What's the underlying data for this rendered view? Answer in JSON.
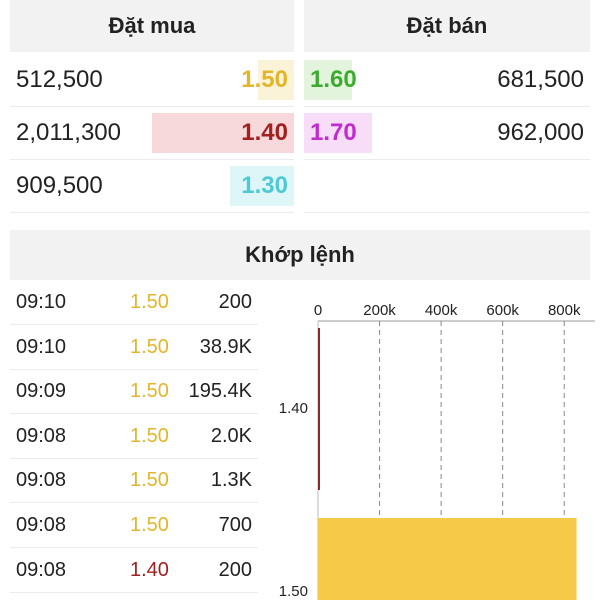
{
  "order_book": {
    "buy_header": "Đặt mua",
    "sell_header": "Đặt bán",
    "buy": [
      {
        "volume": "512,500",
        "price": "1.50",
        "price_color": "#e3b52a",
        "bar_color": "#fbf3d8",
        "volume_fraction": 0.25
      },
      {
        "volume": "2,011,300",
        "price": "1.40",
        "price_color": "#a32020",
        "bar_color": "#f7d9dc",
        "volume_fraction": 1.0
      },
      {
        "volume": "909,500",
        "price": "1.30",
        "price_color": "#4fc9d6",
        "bar_color": "#def6f8",
        "volume_fraction": 0.45
      }
    ],
    "sell": [
      {
        "volume": "681,500",
        "price": "1.60",
        "price_color": "#3cab2f",
        "bar_color": "#e2f4dc",
        "volume_fraction": 0.34
      },
      {
        "volume": "962,000",
        "price": "1.70",
        "price_color": "#c02ccd",
        "bar_color": "#f7ddf8",
        "volume_fraction": 0.48
      }
    ]
  },
  "matched": {
    "header": "Khớp lệnh",
    "trades": [
      {
        "time": "09:10",
        "price": "1.50",
        "price_color": "#e3b52a",
        "volume": "200"
      },
      {
        "time": "09:10",
        "price": "1.50",
        "price_color": "#e3b52a",
        "volume": "38.9K"
      },
      {
        "time": "09:09",
        "price": "1.50",
        "price_color": "#e3b52a",
        "volume": "195.4K"
      },
      {
        "time": "09:08",
        "price": "1.50",
        "price_color": "#e3b52a",
        "volume": "2.0K"
      },
      {
        "time": "09:08",
        "price": "1.50",
        "price_color": "#e3b52a",
        "volume": "1.3K"
      },
      {
        "time": "09:08",
        "price": "1.50",
        "price_color": "#e3b52a",
        "volume": "700"
      },
      {
        "time": "09:08",
        "price": "1.40",
        "price_color": "#a32020",
        "volume": "200"
      }
    ]
  },
  "chart_data": {
    "type": "bar",
    "orientation": "horizontal",
    "x_ticks": [
      "0",
      "200k",
      "400k",
      "600k",
      "800k"
    ],
    "xlim": [
      0,
      900000
    ],
    "categories": [
      "1.40",
      "1.50"
    ],
    "values": [
      3000,
      840000
    ],
    "colors": [
      "#8b2a2a",
      "#f7c948"
    ],
    "grid": true
  }
}
